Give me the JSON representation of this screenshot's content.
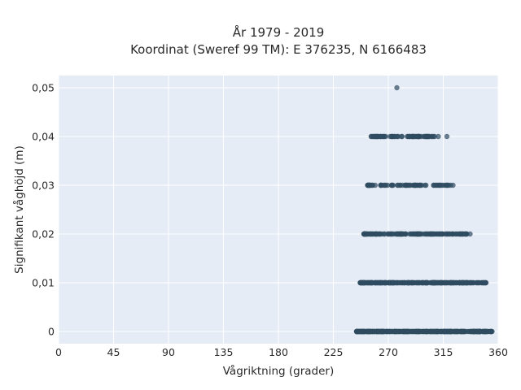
{
  "chart_data": {
    "type": "scatter",
    "title": "År 1979 - 2019",
    "subtitle": "Koordinat (Sweref 99 TM): E 376235, N 6166483",
    "xlabel": "Vågriktning (grader)",
    "ylabel": "Signifikant våghöjd (m)",
    "xlim": [
      0,
      360
    ],
    "ylim": [
      -0.0025,
      0.0525
    ],
    "x_ticks": [
      0,
      45,
      90,
      135,
      180,
      225,
      270,
      315,
      360
    ],
    "x_tick_labels": [
      "0",
      "45",
      "90",
      "135",
      "180",
      "225",
      "270",
      "315",
      "360"
    ],
    "y_ticks": [
      0,
      0.01,
      0.02,
      0.03,
      0.04,
      0.05
    ],
    "y_tick_labels": [
      "0",
      "0,01",
      "0,02",
      "0,03",
      "0,04",
      "0,05"
    ],
    "grid": true,
    "legend": false,
    "colors": {
      "background": "#e5ecf6",
      "marker": "#2f4b61",
      "grid": "#ffffff"
    },
    "bands": [
      {
        "y": 0.0,
        "x_min": 244,
        "x_max": 355,
        "density": "very-dense"
      },
      {
        "y": 0.01,
        "x_min": 247,
        "x_max": 350,
        "density": "dense"
      },
      {
        "y": 0.02,
        "x_min": 250,
        "x_max": 337,
        "density": "medium"
      },
      {
        "y": 0.03,
        "x_min": 253,
        "x_max": 321,
        "density": "sparse"
      },
      {
        "y": 0.04,
        "x_min": 256,
        "x_max": 311,
        "density": "sparse"
      }
    ],
    "outliers": [
      {
        "x": 277,
        "y": 0.05
      },
      {
        "x": 318,
        "y": 0.04
      },
      {
        "x": 323,
        "y": 0.03
      }
    ]
  }
}
